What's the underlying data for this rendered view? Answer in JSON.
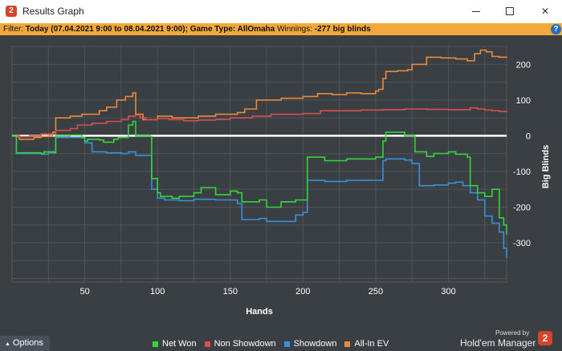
{
  "window": {
    "title": "Results Graph",
    "icon": "hm2-app-icon",
    "minimize_symbol": "",
    "maximize_symbol": "",
    "close_symbol": "✕"
  },
  "filter": {
    "prefix": "Filter: ",
    "value": "Today (07.04.2021 9:00 to 08.04.2021 9:00); Game Type: AllOmaha",
    "winnings_label": " Winnings: ",
    "winnings_value": "-277 big blinds",
    "help_symbol": "?"
  },
  "options_label": "Options",
  "options_arrow": "▲",
  "branding": {
    "powered_by": "Powered by",
    "name": "Hold'em Manager",
    "logo_text": "2"
  },
  "chart_data": {
    "type": "line",
    "xlabel": "Hands",
    "ylabel": "Big Blinds",
    "xlim": [
      0,
      340
    ],
    "ylim": [
      -410,
      250
    ],
    "x_ticks": [
      50,
      100,
      150,
      200,
      250,
      300
    ],
    "y_ticks": [
      200,
      100,
      0,
      -100,
      -200,
      -300
    ],
    "grid": true,
    "legend_position": "bottom",
    "series": [
      {
        "name": "Net Won",
        "color": "#36d33a",
        "points": [
          [
            0,
            0
          ],
          [
            3,
            -48
          ],
          [
            20,
            -50
          ],
          [
            22,
            -45
          ],
          [
            29,
            -48
          ],
          [
            30,
            0
          ],
          [
            40,
            2
          ],
          [
            48,
            -5
          ],
          [
            50,
            -15
          ],
          [
            52,
            -10
          ],
          [
            60,
            -12
          ],
          [
            63,
            -18
          ],
          [
            70,
            -10
          ],
          [
            73,
            -5
          ],
          [
            80,
            30
          ],
          [
            83,
            40
          ],
          [
            85,
            0
          ],
          [
            95,
            -2
          ],
          [
            96,
            -120
          ],
          [
            100,
            -160
          ],
          [
            102,
            -170
          ],
          [
            110,
            -175
          ],
          [
            115,
            -170
          ],
          [
            125,
            -160
          ],
          [
            130,
            -145
          ],
          [
            140,
            -165
          ],
          [
            150,
            -155
          ],
          [
            155,
            -160
          ],
          [
            158,
            -185
          ],
          [
            170,
            -180
          ],
          [
            175,
            -200
          ],
          [
            185,
            -185
          ],
          [
            195,
            -180
          ],
          [
            200,
            -180
          ],
          [
            203,
            -60
          ],
          [
            215,
            -70
          ],
          [
            230,
            -65
          ],
          [
            250,
            -60
          ],
          [
            253,
            -60
          ],
          [
            255,
            -15
          ],
          [
            257,
            10
          ],
          [
            265,
            10
          ],
          [
            270,
            0
          ],
          [
            277,
            -45
          ],
          [
            285,
            -58
          ],
          [
            290,
            -50
          ],
          [
            300,
            -45
          ],
          [
            305,
            -52
          ],
          [
            313,
            -60
          ],
          [
            315,
            -140
          ],
          [
            320,
            -160
          ],
          [
            325,
            -170
          ],
          [
            330,
            -150
          ],
          [
            335,
            -230
          ],
          [
            338,
            -250
          ],
          [
            340,
            -277
          ]
        ]
      },
      {
        "name": "Non Showdown",
        "color": "#d84f4f",
        "points": [
          [
            0,
            0
          ],
          [
            5,
            -3
          ],
          [
            12,
            0
          ],
          [
            20,
            5
          ],
          [
            30,
            15
          ],
          [
            40,
            20
          ],
          [
            45,
            30
          ],
          [
            55,
            35
          ],
          [
            65,
            40
          ],
          [
            75,
            45
          ],
          [
            80,
            55
          ],
          [
            85,
            58
          ],
          [
            88,
            50
          ],
          [
            92,
            45
          ],
          [
            100,
            48
          ],
          [
            108,
            45
          ],
          [
            118,
            42
          ],
          [
            128,
            44
          ],
          [
            140,
            46
          ],
          [
            150,
            50
          ],
          [
            165,
            55
          ],
          [
            178,
            60
          ],
          [
            190,
            60
          ],
          [
            200,
            62
          ],
          [
            212,
            70
          ],
          [
            225,
            70
          ],
          [
            240,
            72
          ],
          [
            255,
            73
          ],
          [
            270,
            75
          ],
          [
            285,
            74
          ],
          [
            300,
            73
          ],
          [
            315,
            78
          ],
          [
            320,
            75
          ],
          [
            325,
            72
          ],
          [
            330,
            70
          ],
          [
            335,
            68
          ],
          [
            340,
            66
          ]
        ]
      },
      {
        "name": "Showdown",
        "color": "#3a8fd6",
        "points": [
          [
            0,
            0
          ],
          [
            3,
            -50
          ],
          [
            20,
            -52
          ],
          [
            25,
            -48
          ],
          [
            30,
            -5
          ],
          [
            45,
            -5
          ],
          [
            50,
            -20
          ],
          [
            55,
            -45
          ],
          [
            65,
            -48
          ],
          [
            75,
            -50
          ],
          [
            80,
            -45
          ],
          [
            85,
            -55
          ],
          [
            95,
            -55
          ],
          [
            96,
            -150
          ],
          [
            100,
            -175
          ],
          [
            105,
            -180
          ],
          [
            115,
            -182
          ],
          [
            125,
            -178
          ],
          [
            140,
            -180
          ],
          [
            150,
            -180
          ],
          [
            155,
            -190
          ],
          [
            158,
            -235
          ],
          [
            170,
            -232
          ],
          [
            175,
            -240
          ],
          [
            190,
            -240
          ],
          [
            195,
            -222
          ],
          [
            200,
            -215
          ],
          [
            203,
            -125
          ],
          [
            215,
            -128
          ],
          [
            230,
            -125
          ],
          [
            250,
            -125
          ],
          [
            253,
            -125
          ],
          [
            255,
            -70
          ],
          [
            257,
            -65
          ],
          [
            270,
            -68
          ],
          [
            275,
            -78
          ],
          [
            280,
            -140
          ],
          [
            290,
            -138
          ],
          [
            300,
            -133
          ],
          [
            305,
            -130
          ],
          [
            310,
            -140
          ],
          [
            315,
            -160
          ],
          [
            320,
            -180
          ],
          [
            325,
            -225
          ],
          [
            330,
            -245
          ],
          [
            335,
            -270
          ],
          [
            338,
            -315
          ],
          [
            340,
            -343
          ]
        ]
      },
      {
        "name": "All-In EV",
        "color": "#e88a3a",
        "points": [
          [
            0,
            0
          ],
          [
            5,
            -10
          ],
          [
            15,
            -5
          ],
          [
            20,
            -2
          ],
          [
            25,
            0
          ],
          [
            28,
            10
          ],
          [
            30,
            50
          ],
          [
            40,
            55
          ],
          [
            48,
            60
          ],
          [
            55,
            60
          ],
          [
            60,
            70
          ],
          [
            65,
            80
          ],
          [
            72,
            100
          ],
          [
            78,
            110
          ],
          [
            83,
            120
          ],
          [
            85,
            60
          ],
          [
            90,
            45
          ],
          [
            100,
            55
          ],
          [
            110,
            50
          ],
          [
            120,
            50
          ],
          [
            128,
            55
          ],
          [
            140,
            60
          ],
          [
            155,
            65
          ],
          [
            160,
            75
          ],
          [
            168,
            100
          ],
          [
            178,
            100
          ],
          [
            185,
            105
          ],
          [
            195,
            105
          ],
          [
            200,
            110
          ],
          [
            210,
            118
          ],
          [
            220,
            115
          ],
          [
            230,
            120
          ],
          [
            240,
            118
          ],
          [
            250,
            125
          ],
          [
            252,
            130
          ],
          [
            255,
            160
          ],
          [
            257,
            180
          ],
          [
            265,
            182
          ],
          [
            272,
            185
          ],
          [
            275,
            200
          ],
          [
            285,
            220
          ],
          [
            295,
            218
          ],
          [
            305,
            215
          ],
          [
            313,
            210
          ],
          [
            318,
            230
          ],
          [
            322,
            240
          ],
          [
            326,
            235
          ],
          [
            330,
            222
          ],
          [
            335,
            220
          ],
          [
            340,
            218
          ]
        ]
      }
    ]
  }
}
